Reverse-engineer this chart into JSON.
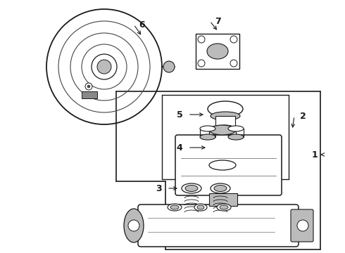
{
  "bg_color": "#ffffff",
  "line_color": "#1a1a1a",
  "dark_gray": "#444444",
  "mid_gray": "#888888",
  "light_gray": "#bbbbbb",
  "figsize": [
    4.9,
    3.6
  ],
  "dpi": 100
}
